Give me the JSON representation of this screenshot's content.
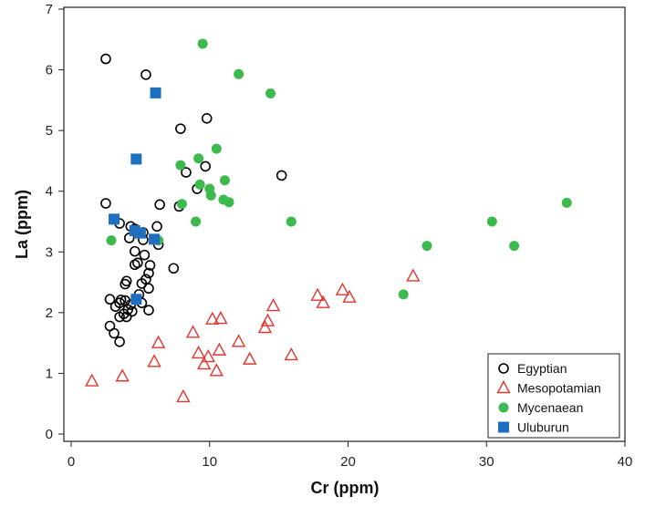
{
  "chart_data": {
    "type": "scatter",
    "title": "",
    "xlabel": "Cr (ppm)",
    "ylabel": "La (ppm)",
    "xlim": [
      0,
      40
    ],
    "ylim": [
      0,
      7
    ],
    "xticks": [
      0,
      10,
      20,
      30,
      40
    ],
    "yticks": [
      0,
      1,
      2,
      3,
      4,
      5,
      6,
      7
    ],
    "legend_position": "bottom-right",
    "series": [
      {
        "name": "Egyptian",
        "marker": "open-circle",
        "color": "#000000",
        "points": [
          [
            2.5,
            6.18
          ],
          [
            5.4,
            5.92
          ],
          [
            9.8,
            5.2
          ],
          [
            7.9,
            5.03
          ],
          [
            9.7,
            4.41
          ],
          [
            8.3,
            4.31
          ],
          [
            15.2,
            4.26
          ],
          [
            9.1,
            4.04
          ],
          [
            2.5,
            3.8
          ],
          [
            6.4,
            3.78
          ],
          [
            7.8,
            3.75
          ],
          [
            3.5,
            3.47
          ],
          [
            4.3,
            3.42
          ],
          [
            4.6,
            3.38
          ],
          [
            6.2,
            3.42
          ],
          [
            5.2,
            3.32
          ],
          [
            4.2,
            3.23
          ],
          [
            5.2,
            3.2
          ],
          [
            6.3,
            3.12
          ],
          [
            4.6,
            3.01
          ],
          [
            5.3,
            2.95
          ],
          [
            4.8,
            2.82
          ],
          [
            4.6,
            2.79
          ],
          [
            5.7,
            2.78
          ],
          [
            7.4,
            2.73
          ],
          [
            5.6,
            2.65
          ],
          [
            5.4,
            2.55
          ],
          [
            4.0,
            2.52
          ],
          [
            3.9,
            2.47
          ],
          [
            5.1,
            2.48
          ],
          [
            5.6,
            2.4
          ],
          [
            4.9,
            2.3
          ],
          [
            2.8,
            2.22
          ],
          [
            3.6,
            2.21
          ],
          [
            3.9,
            2.2
          ],
          [
            3.5,
            2.16
          ],
          [
            5.1,
            2.16
          ],
          [
            4.3,
            2.13
          ],
          [
            3.2,
            2.1
          ],
          [
            4.1,
            2.05
          ],
          [
            5.6,
            2.04
          ],
          [
            3.8,
            1.98
          ],
          [
            4.4,
            2.02
          ],
          [
            4.0,
            1.93
          ],
          [
            3.5,
            1.93
          ],
          [
            2.8,
            1.78
          ],
          [
            3.1,
            1.66
          ],
          [
            3.5,
            1.52
          ]
        ]
      },
      {
        "name": "Mesopotamian",
        "marker": "open-triangle",
        "color": "#e3342f",
        "points": [
          [
            1.5,
            0.87
          ],
          [
            3.7,
            0.95
          ],
          [
            6.0,
            1.19
          ],
          [
            6.3,
            1.5
          ],
          [
            8.8,
            1.67
          ],
          [
            9.2,
            1.33
          ],
          [
            9.6,
            1.15
          ],
          [
            9.9,
            1.27
          ],
          [
            10.2,
            1.89
          ],
          [
            10.5,
            1.04
          ],
          [
            10.7,
            1.38
          ],
          [
            10.8,
            1.9
          ],
          [
            8.1,
            0.61
          ],
          [
            12.1,
            1.52
          ],
          [
            12.9,
            1.23
          ],
          [
            14.0,
            1.75
          ],
          [
            14.2,
            1.86
          ],
          [
            14.6,
            2.11
          ],
          [
            15.9,
            1.3
          ],
          [
            17.8,
            2.28
          ],
          [
            18.2,
            2.16
          ],
          [
            19.6,
            2.37
          ],
          [
            20.1,
            2.25
          ],
          [
            24.7,
            2.6
          ]
        ]
      },
      {
        "name": "Mycenaean",
        "marker": "filled-circle",
        "color": "#3dba4e",
        "points": [
          [
            9.5,
            6.43
          ],
          [
            12.1,
            5.93
          ],
          [
            14.4,
            5.61
          ],
          [
            9.2,
            4.54
          ],
          [
            7.9,
            4.43
          ],
          [
            10.0,
            4.04
          ],
          [
            9.3,
            4.11
          ],
          [
            10.1,
            3.93
          ],
          [
            10.5,
            4.7
          ],
          [
            11.1,
            4.18
          ],
          [
            11.0,
            3.86
          ],
          [
            11.4,
            3.82
          ],
          [
            8.0,
            3.79
          ],
          [
            9.0,
            3.5
          ],
          [
            15.9,
            3.5
          ],
          [
            2.9,
            3.19
          ],
          [
            6.3,
            3.19
          ],
          [
            30.4,
            3.5
          ],
          [
            35.8,
            3.81
          ],
          [
            25.7,
            3.1
          ],
          [
            32.0,
            3.1
          ],
          [
            24.0,
            2.3
          ]
        ]
      },
      {
        "name": "Uluburun",
        "marker": "filled-square",
        "color": "#1f6fbf",
        "points": [
          [
            6.1,
            5.62
          ],
          [
            4.7,
            4.53
          ],
          [
            3.1,
            3.54
          ],
          [
            4.6,
            3.35
          ],
          [
            5.0,
            3.31
          ],
          [
            6.0,
            3.21
          ],
          [
            4.7,
            2.22
          ]
        ]
      }
    ]
  }
}
